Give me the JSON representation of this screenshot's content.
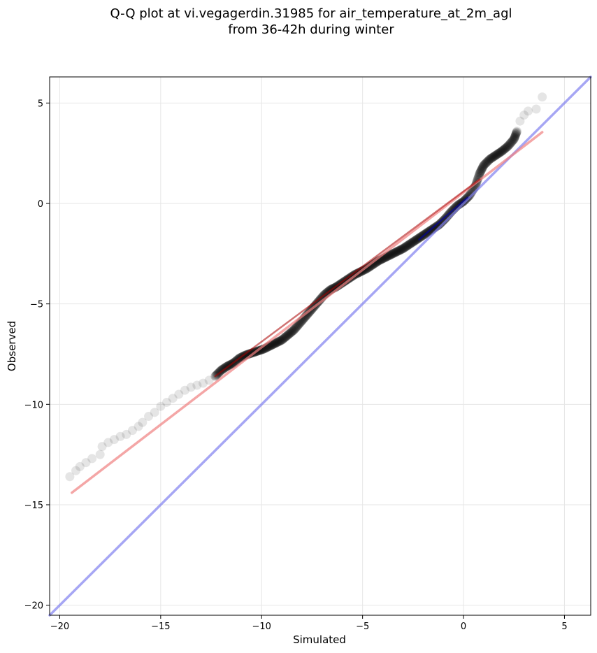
{
  "chart_data": {
    "type": "scatter",
    "title_line1": "Q-Q plot at vi.vegagerdin.31985 for air_temperature_at_2m_agl",
    "title_line2": "from 36-42h during winter",
    "xlabel": "Simulated",
    "ylabel": "Observed",
    "xlim": [
      -20.5,
      6.3
    ],
    "ylim": [
      -20.5,
      6.3
    ],
    "xticks": [
      -20,
      -15,
      -10,
      -5,
      0,
      5
    ],
    "yticks": [
      -20,
      -15,
      -10,
      -5,
      0,
      5
    ],
    "xtick_labels": [
      "−20",
      "−15",
      "−10",
      "−5",
      "0",
      "5"
    ],
    "ytick_labels": [
      "−20",
      "−15",
      "−10",
      "−5",
      "0",
      "5"
    ],
    "grid": true,
    "colors": {
      "points": "#000000",
      "fit_line": "#f08080",
      "identity_line": "#8080f0",
      "local_red": "#aa0000",
      "local_blue": "#0000aa"
    },
    "qq_points": [
      [
        -19.5,
        -13.6
      ],
      [
        -19.2,
        -13.3
      ],
      [
        -19.0,
        -13.1
      ],
      [
        -18.7,
        -12.9
      ],
      [
        -18.4,
        -12.7
      ],
      [
        -18.0,
        -12.5
      ],
      [
        -17.9,
        -12.1
      ],
      [
        -17.6,
        -11.9
      ],
      [
        -17.3,
        -11.75
      ],
      [
        -17.0,
        -11.6
      ],
      [
        -16.7,
        -11.5
      ],
      [
        -16.4,
        -11.3
      ],
      [
        -16.1,
        -11.1
      ],
      [
        -15.9,
        -10.9
      ],
      [
        -15.6,
        -10.6
      ],
      [
        -15.3,
        -10.4
      ],
      [
        -15.0,
        -10.1
      ],
      [
        -14.7,
        -9.9
      ],
      [
        -14.4,
        -9.7
      ],
      [
        -14.1,
        -9.5
      ],
      [
        -13.8,
        -9.3
      ],
      [
        -13.5,
        -9.15
      ],
      [
        -13.2,
        -9.05
      ],
      [
        -12.9,
        -8.95
      ],
      [
        -12.6,
        -8.8
      ],
      [
        -12.3,
        -8.6
      ],
      [
        -12.0,
        -8.3
      ],
      [
        -11.7,
        -8.1
      ],
      [
        -11.4,
        -7.95
      ],
      [
        -11.1,
        -7.7
      ],
      [
        -10.8,
        -7.55
      ],
      [
        -10.5,
        -7.45
      ],
      [
        -10.2,
        -7.35
      ],
      [
        -9.9,
        -7.25
      ],
      [
        -9.6,
        -7.1
      ],
      [
        -9.3,
        -6.95
      ],
      [
        -9.0,
        -6.8
      ],
      [
        -8.7,
        -6.55
      ],
      [
        -8.4,
        -6.3
      ],
      [
        -8.1,
        -5.95
      ],
      [
        -7.8,
        -5.6
      ],
      [
        -7.5,
        -5.25
      ],
      [
        -7.2,
        -4.9
      ],
      [
        -6.9,
        -4.55
      ],
      [
        -6.6,
        -4.3
      ],
      [
        -6.3,
        -4.15
      ],
      [
        -6.0,
        -3.95
      ],
      [
        -5.7,
        -3.75
      ],
      [
        -5.4,
        -3.55
      ],
      [
        -5.1,
        -3.4
      ],
      [
        -4.8,
        -3.25
      ],
      [
        -4.5,
        -3.05
      ],
      [
        -4.2,
        -2.85
      ],
      [
        -3.9,
        -2.7
      ],
      [
        -3.6,
        -2.55
      ],
      [
        -3.3,
        -2.4
      ],
      [
        -3.0,
        -2.25
      ],
      [
        -2.7,
        -2.05
      ],
      [
        -2.4,
        -1.85
      ],
      [
        -2.1,
        -1.65
      ],
      [
        -1.8,
        -1.45
      ],
      [
        -1.5,
        -1.25
      ],
      [
        -1.2,
        -1.05
      ],
      [
        -0.9,
        -0.75
      ],
      [
        -0.6,
        -0.4
      ],
      [
        -0.3,
        -0.1
      ],
      [
        0.0,
        0.1
      ],
      [
        0.3,
        0.4
      ],
      [
        0.6,
        0.9
      ],
      [
        0.8,
        1.5
      ],
      [
        1.0,
        1.9
      ],
      [
        1.3,
        2.2
      ],
      [
        1.6,
        2.4
      ],
      [
        1.9,
        2.6
      ],
      [
        2.2,
        2.85
      ],
      [
        2.5,
        3.2
      ],
      [
        2.65,
        3.6
      ],
      [
        2.8,
        4.1
      ],
      [
        3.0,
        4.4
      ],
      [
        3.2,
        4.6
      ],
      [
        3.6,
        4.7
      ],
      [
        3.9,
        5.3
      ]
    ],
    "fit_line": [
      [
        -19.4,
        -14.4
      ],
      [
        3.9,
        3.55
      ]
    ],
    "identity_line": [
      [
        -20.5,
        -20.5
      ],
      [
        6.3,
        6.3
      ]
    ],
    "local_red_segment": [
      [
        -12.3,
        -8.6
      ],
      [
        0.8,
        1.2
      ]
    ],
    "local_blue_segment": [
      [
        -2.2,
        -1.8
      ],
      [
        0.2,
        0.3
      ]
    ]
  }
}
